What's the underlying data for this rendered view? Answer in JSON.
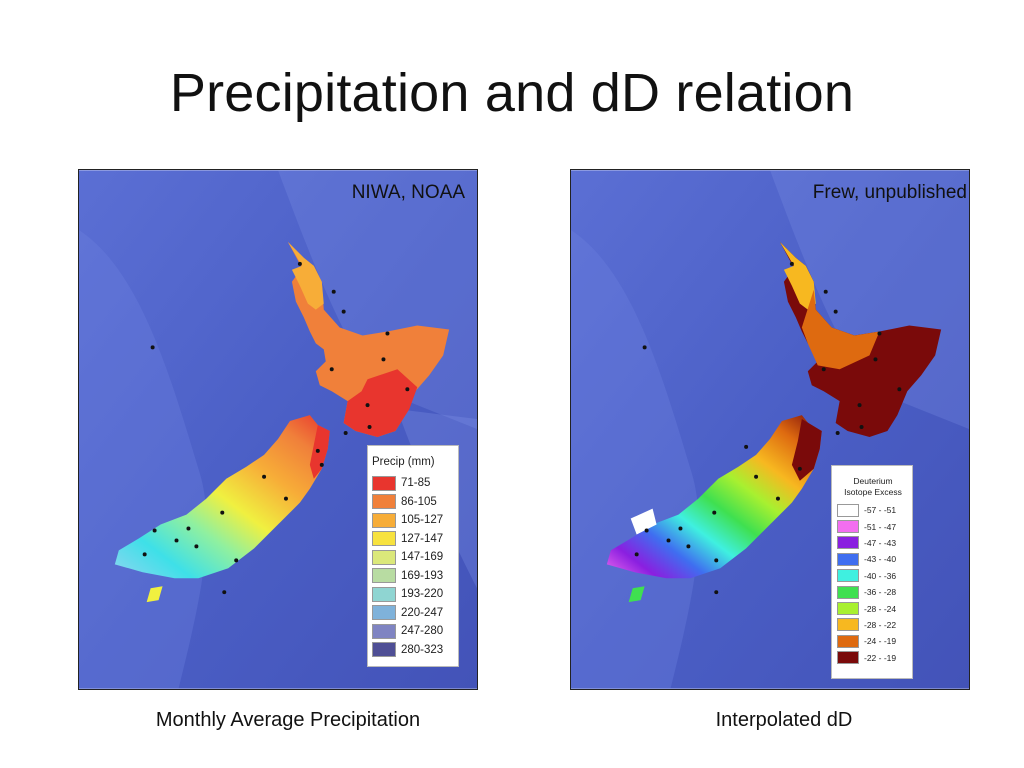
{
  "slide": {
    "title": "Precipitation and dD relation"
  },
  "left_map": {
    "credit": "NIWA, NOAA",
    "caption": "Monthly Average Precipitation",
    "legend": {
      "title": "Precip (mm)",
      "items": [
        {
          "label": "71-85",
          "color": "#e8352e"
        },
        {
          "label": "86-105",
          "color": "#f0803a"
        },
        {
          "label": "105-127",
          "color": "#f7ad38"
        },
        {
          "label": "127-147",
          "color": "#f7e23e"
        },
        {
          "label": "147-169",
          "color": "#dbe87a"
        },
        {
          "label": "169-193",
          "color": "#b8dca2"
        },
        {
          "label": "193-220",
          "color": "#8fd5d2"
        },
        {
          "label": "220-247",
          "color": "#7fb2da"
        },
        {
          "label": "247-280",
          "color": "#7f84c2"
        },
        {
          "label": "280-323",
          "color": "#4f4f95"
        }
      ]
    }
  },
  "right_map": {
    "credit": "Frew, unpublished",
    "caption": "Interpolated dD",
    "legend": {
      "title_line1": "Deuterium",
      "title_line2": "Isotope Excess",
      "items": [
        {
          "label": "-57 - -51",
          "color": "#ffffff"
        },
        {
          "label": "-51 - -47",
          "color": "#f36ef0"
        },
        {
          "label": "-47 - -43",
          "color": "#8a1fe0"
        },
        {
          "label": "-43 - -40",
          "color": "#3f6ef0"
        },
        {
          "label": "-40 - -36",
          "color": "#3ff0e0"
        },
        {
          "label": "-36 - -28",
          "color": "#3fe050"
        },
        {
          "label": "-28 - -24",
          "color": "#a8f030"
        },
        {
          "label": "-28 - -22",
          "color": "#f7b820"
        },
        {
          "label": "-24 - -19",
          "color": "#de6a10"
        },
        {
          "label": "-22 - -19",
          "color": "#7a0a0a"
        }
      ]
    }
  }
}
